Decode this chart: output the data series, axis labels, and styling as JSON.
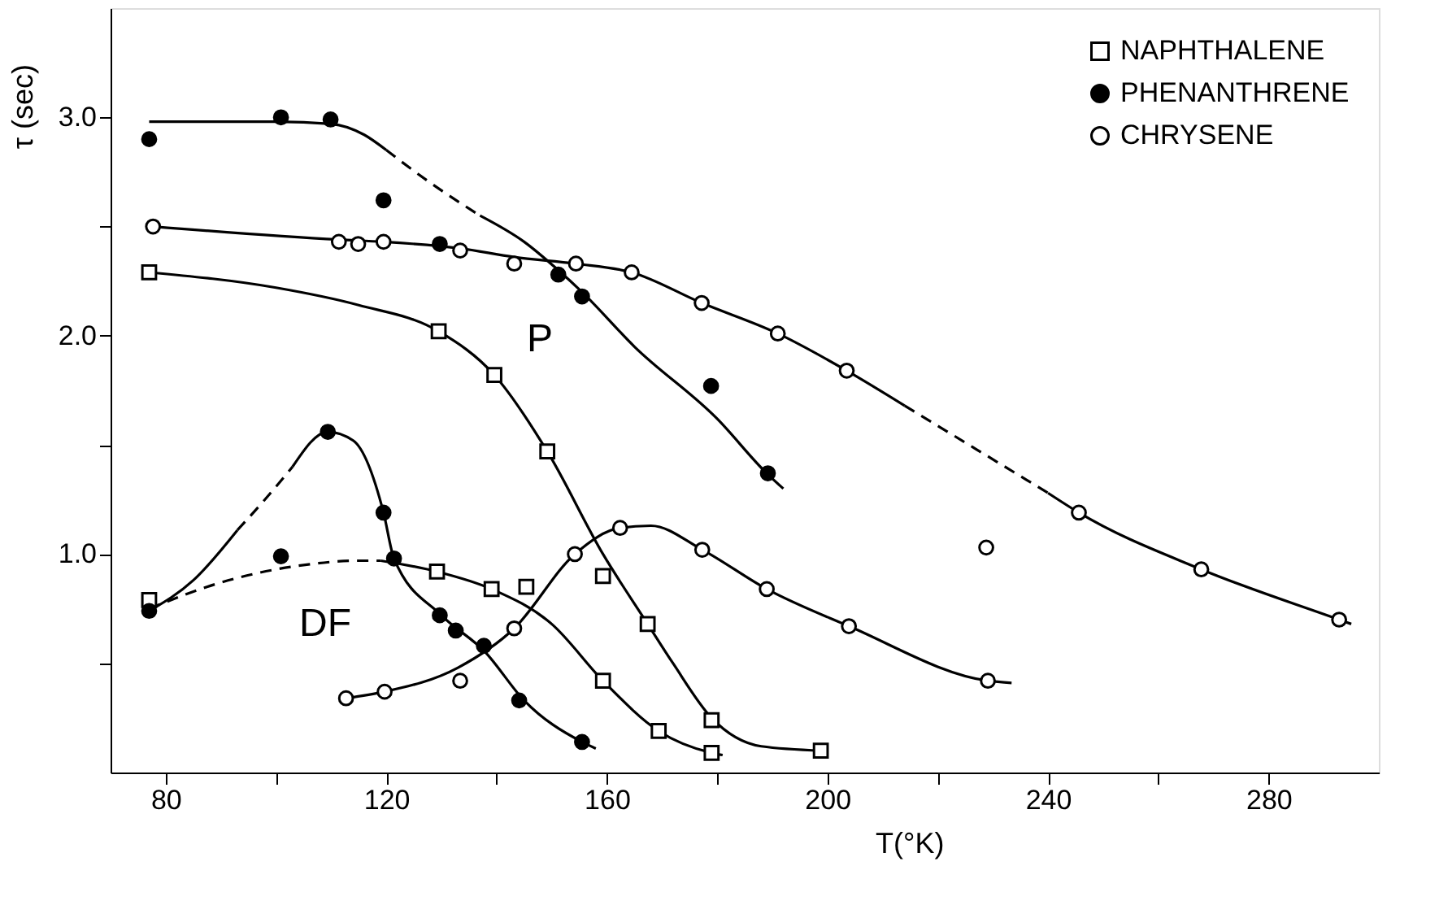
{
  "chart_data": {
    "type": "scatter",
    "xlabel": "T(°K)",
    "ylabel": "τ (sec)",
    "xlim": [
      70,
      300
    ],
    "ylim": [
      0,
      3.5
    ],
    "xticks": [
      80,
      {
        "value": 100,
        "label": null
      },
      120,
      {
        "value": 140,
        "label": null
      },
      160,
      {
        "value": 180,
        "label": null
      },
      200,
      {
        "value": 220,
        "label": null
      },
      240,
      {
        "value": 260,
        "label": null
      },
      280
    ],
    "yticks": [
      {
        "value": 0.5,
        "label": null
      },
      {
        "value": 1,
        "label": "1.0"
      },
      {
        "value": 1.5,
        "label": null
      },
      {
        "value": 2,
        "label": "2.0"
      },
      {
        "value": 2.5,
        "label": null
      },
      {
        "value": 3,
        "label": "3.0"
      }
    ],
    "grid": false,
    "legend": "top right",
    "annotations": [
      "P",
      "DF"
    ],
    "series": [
      {
        "name": "NAPHTHALENE",
        "marker": "square",
        "color": "#ffffff",
        "x": [
          77,
          129.5,
          139.6,
          149.2,
          159.3,
          167.4,
          179,
          198.8,
          77,
          129.2,
          139.1,
          145.4,
          159.3,
          169.4,
          179
        ],
        "values": [
          2.29,
          2.02,
          1.82,
          1.47,
          0.9,
          0.68,
          0.24,
          0.1,
          0.79,
          0.92,
          0.84,
          0.85,
          0.42,
          0.19,
          0.09
        ]
      },
      {
        "name": "PHENANTHRENE",
        "marker": "circle",
        "color": "#000000",
        "x": [
          77,
          100.9,
          109.9,
          119.5,
          129.7,
          151.2,
          155.5,
          178.9,
          189.2,
          77,
          100.9,
          109.4,
          119.5,
          121.4,
          129.7,
          132.6,
          137.7,
          144.1,
          155.5
        ],
        "values": [
          2.9,
          3.0,
          2.99,
          2.62,
          2.42,
          2.28,
          2.18,
          1.77,
          1.37,
          0.74,
          0.99,
          1.56,
          1.19,
          0.98,
          0.72,
          0.65,
          0.58,
          0.33,
          0.14
        ]
      },
      {
        "name": "CHRYSENE",
        "marker": "circle",
        "color": "#ffffff",
        "x": [
          77.7,
          111.4,
          114.9,
          119.5,
          133.4,
          143.2,
          154.4,
          164.5,
          177.2,
          191,
          203.5,
          245.6,
          267.8,
          292.8,
          228.8,
          112.7,
          119.7,
          133.4,
          143.2,
          154.2,
          162.4,
          177.3,
          189,
          203.9,
          229.1
        ],
        "values": [
          2.5,
          2.43,
          2.42,
          2.43,
          2.39,
          2.33,
          2.33,
          2.29,
          2.15,
          2.01,
          1.84,
          1.19,
          0.93,
          0.7,
          1.03,
          0.34,
          0.37,
          0.42,
          0.66,
          1.0,
          1.12,
          1.02,
          0.84,
          0.67,
          0.42
        ]
      },
      {
        "type": "line",
        "line_style": "solid",
        "color": "#000000",
        "x": [
          77,
          100,
          115,
          129.5,
          139.6,
          149.2,
          159.3,
          167.4,
          172,
          179,
          188,
          199
        ],
        "values": [
          2.29,
          2.22,
          2.14,
          2.02,
          1.82,
          1.47,
          1.0,
          0.68,
          0.5,
          0.25,
          0.12,
          0.1
        ]
      },
      {
        "type": "line",
        "line_style": "dashed",
        "color": "#000000",
        "x": [
          77,
          90,
          105,
          115,
          119
        ],
        "values": [
          0.75,
          0.87,
          0.95,
          0.97,
          0.97
        ]
      },
      {
        "type": "line",
        "line_style": "solid",
        "color": "#000000",
        "x": [
          119,
          129.2,
          139.1,
          150,
          159.3,
          169.4,
          179,
          181
        ],
        "values": [
          0.97,
          0.92,
          0.84,
          0.68,
          0.42,
          0.19,
          0.09,
          0.08
        ]
      },
      {
        "type": "line",
        "line_style": "solid",
        "color": "#000000",
        "x": [
          77,
          100,
          110,
          116,
          120
        ],
        "values": [
          2.98,
          2.98,
          2.97,
          2.92,
          2.85
        ]
      },
      {
        "type": "line",
        "line_style": "dashed",
        "color": "#000000",
        "x": [
          120,
          128,
          137
        ],
        "values": [
          2.85,
          2.7,
          2.55
        ]
      },
      {
        "type": "line",
        "line_style": "solid",
        "color": "#000000",
        "x": [
          137,
          145,
          151.2,
          155.5,
          165,
          180,
          189,
          192
        ],
        "values": [
          2.55,
          2.43,
          2.3,
          2.2,
          1.95,
          1.62,
          1.37,
          1.3
        ]
      },
      {
        "type": "line",
        "line_style": "solid",
        "color": "#000000",
        "x": [
          77,
          85,
          93
        ],
        "values": [
          0.74,
          0.88,
          1.11
        ]
      },
      {
        "type": "line",
        "line_style": "dashed",
        "color": "#000000",
        "x": [
          93,
          98,
          103
        ],
        "values": [
          1.11,
          1.25,
          1.4
        ]
      },
      {
        "type": "line",
        "line_style": "solid",
        "color": "#000000",
        "x": [
          103,
          109.4,
          114,
          119.5,
          121.4,
          130,
          138,
          145,
          155.5,
          158
        ],
        "values": [
          1.4,
          1.56,
          1.52,
          1.19,
          0.98,
          0.72,
          0.55,
          0.33,
          0.14,
          0.11
        ]
      },
      {
        "type": "line",
        "line_style": "solid",
        "color": "#000000",
        "x": [
          77.7,
          111.4,
          119.5,
          133.4,
          143.2,
          154.4,
          164.5,
          177.2,
          191,
          203.5,
          214
        ],
        "values": [
          2.5,
          2.44,
          2.43,
          2.4,
          2.36,
          2.33,
          2.29,
          2.15,
          2.01,
          1.84,
          1.68
        ]
      },
      {
        "type": "line",
        "line_style": "dashed",
        "color": "#000000",
        "x": [
          214,
          227,
          240
        ],
        "values": [
          1.68,
          1.48,
          1.28
        ]
      },
      {
        "type": "line",
        "line_style": "solid",
        "color": "#000000",
        "x": [
          240,
          245.6,
          267.8,
          292.8,
          295
        ],
        "values": [
          1.28,
          1.19,
          0.93,
          0.7,
          0.68
        ]
      },
      {
        "type": "line",
        "line_style": "solid",
        "color": "#000000",
        "x": [
          112.7,
          119.7,
          133,
          143.2,
          154.2,
          162.4,
          168,
          177.3,
          189,
          203.9,
          229.1,
          233.4
        ],
        "values": [
          0.34,
          0.37,
          0.48,
          0.66,
          1.0,
          1.12,
          1.13,
          1.02,
          0.84,
          0.67,
          0.42,
          0.41
        ]
      }
    ]
  }
}
